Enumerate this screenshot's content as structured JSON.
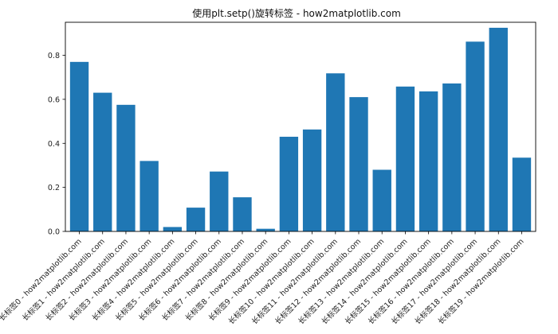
{
  "chart_data": {
    "type": "bar",
    "title": "使用plt.setp()旋转标签 - how2matplotlib.com",
    "xlabel": "",
    "ylabel": "",
    "categories": [
      "长标签0 - how2matplotlib.com",
      "长标签1 - how2matplotlib.com",
      "长标签2 - how2matplotlib.com",
      "长标签3 - how2matplotlib.com",
      "长标签4 - how2matplotlib.com",
      "长标签5 - how2matplotlib.com",
      "长标签6 - how2matplotlib.com",
      "长标签7 - how2matplotlib.com",
      "长标签8 - how2matplotlib.com",
      "长标签9 - how2matplotlib.com",
      "长标签10 - how2matplotlib.com",
      "长标签11 - how2matplotlib.com",
      "长标签12 - how2matplotlib.com",
      "长标签13 - how2matplotlib.com",
      "长标签14 - how2matplotlib.com",
      "长标签15 - how2matplotlib.com",
      "长标签16 - how2matplotlib.com",
      "长标签17 - how2matplotlib.com",
      "长标签18 - how2matplotlib.com",
      "长标签19 - how2matplotlib.com"
    ],
    "values": [
      0.77,
      0.63,
      0.575,
      0.32,
      0.02,
      0.108,
      0.272,
      0.155,
      0.012,
      0.43,
      0.463,
      0.718,
      0.61,
      0.28,
      0.658,
      0.636,
      0.672,
      0.862,
      0.925,
      0.335
    ],
    "ylim": [
      0,
      0.95
    ],
    "yticks": [
      0.0,
      0.2,
      0.4,
      0.6,
      0.8
    ],
    "ytick_labels": [
      "0.0",
      "0.2",
      "0.4",
      "0.6",
      "0.8"
    ],
    "bar_color": "#1f77b4",
    "grid": false,
    "label_rotation": 45
  }
}
